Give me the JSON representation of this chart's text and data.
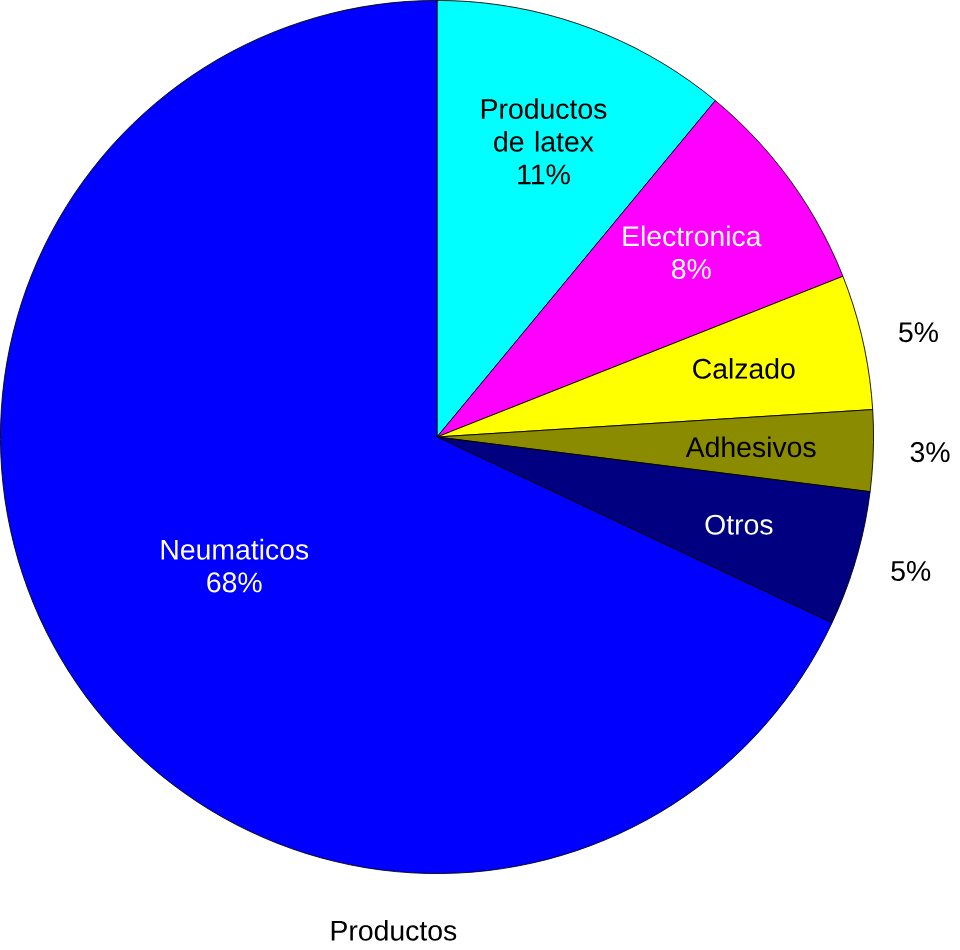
{
  "chart_data": {
    "type": "pie",
    "xlabel": "Productos",
    "categories": [
      "Productos de latex",
      "Electronica",
      "Calzado",
      "Adhesivos",
      "Otros",
      "Neumaticos"
    ],
    "values": [
      11,
      8,
      5,
      3,
      5,
      68
    ],
    "value_labels": [
      "11%",
      "8%",
      "5%",
      "3%",
      "5%",
      "68%"
    ],
    "colors": [
      "#00ffff",
      "#ff00ff",
      "#ffff00",
      "#8b8b00",
      "#000080",
      "#0000ff"
    ]
  }
}
